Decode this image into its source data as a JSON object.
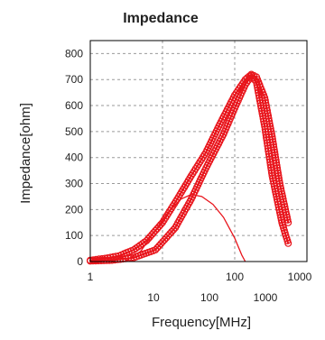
{
  "chart_data": {
    "type": "line",
    "title": "Impedance",
    "xlabel": "Frequency[MHz]",
    "ylabel": "Impedance[ohm]",
    "x_scale": "log",
    "xlim": [
      1,
      1000
    ],
    "ylim": [
      0,
      850
    ],
    "grid": true,
    "x_ticks_upper": [
      "1",
      "100",
      "1000"
    ],
    "x_ticks_lower": [
      "10",
      "100",
      "1000"
    ],
    "y_ticks": [
      "0",
      "100",
      "200",
      "300",
      "400",
      "500",
      "600",
      "700",
      "800"
    ],
    "series_color": "#e8141b",
    "series": [
      {
        "marker": true,
        "x": [
          1,
          1.6,
          2.5,
          4,
          6,
          10,
          16,
          25,
          40,
          60,
          100,
          140,
          170,
          200,
          260,
          330,
          420,
          550
        ],
        "values": [
          5,
          12,
          22,
          45,
          80,
          150,
          240,
          330,
          420,
          520,
          640,
          700,
          720,
          710,
          630,
          480,
          300,
          150
        ]
      },
      {
        "marker": true,
        "x": [
          1,
          2,
          4,
          8,
          15,
          25,
          40,
          70,
          100,
          140,
          170,
          200,
          260,
          330,
          450,
          550
        ],
        "values": [
          2,
          5,
          15,
          45,
          130,
          240,
          360,
          490,
          590,
          680,
          715,
          690,
          520,
          330,
          150,
          70
        ]
      },
      {
        "marker": false,
        "x": [
          3,
          5,
          8,
          12,
          18,
          25,
          35,
          50,
          70,
          100,
          125,
          140
        ],
        "values": [
          0,
          40,
          120,
          190,
          240,
          258,
          250,
          220,
          170,
          90,
          25,
          0
        ]
      }
    ]
  }
}
